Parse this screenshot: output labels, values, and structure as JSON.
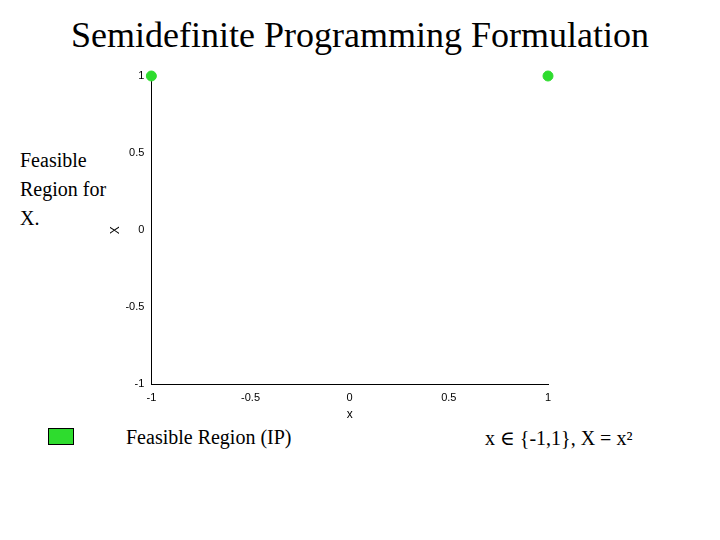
{
  "chart_data": {
    "type": "scatter",
    "title": "Semidefinite Programming Formulation",
    "annotations": [
      "Feasible Region for X.",
      "x ∈ {-1,1}, X = x²"
    ],
    "x_label": "x",
    "y_label": "X",
    "series": [
      {
        "name": "Feasible Region (IP)",
        "color": "#2edc2e",
        "x": [
          -1,
          1
        ],
        "values": [
          1,
          1
        ]
      }
    ],
    "xlim": [
      -1,
      1
    ],
    "xticks": [
      -1,
      -0.5,
      0,
      0.5,
      1
    ],
    "ylim": [
      -1,
      1
    ],
    "yticks": [
      -1,
      -0.5,
      0,
      0.5,
      1
    ],
    "grid": false,
    "legend": "bottom"
  }
}
